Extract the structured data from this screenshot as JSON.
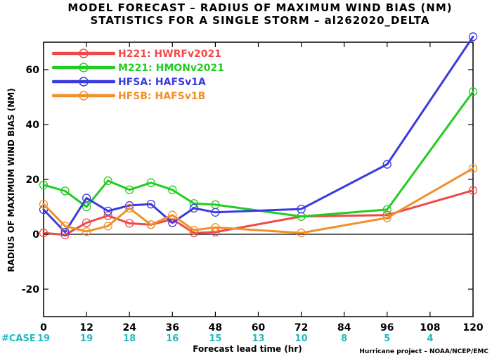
{
  "title_line1": "MODEL FORECAST – RADIUS OF MAXIMUM WIND BIAS (NM)",
  "title_line2": "STATISTICS FOR A SINGLE STORM – al262020_DELTA",
  "credit": "Hurricane project – NOAA/NCEP/EMC",
  "case_label": "#CASE",
  "case_color": "#1fb8c2",
  "cases": [
    {
      "hour": 0,
      "count": "19"
    },
    {
      "hour": 12,
      "count": "19"
    },
    {
      "hour": 24,
      "count": "18"
    },
    {
      "hour": 36,
      "count": "16"
    },
    {
      "hour": 48,
      "count": "15"
    },
    {
      "hour": 60,
      "count": "13"
    },
    {
      "hour": 72,
      "count": "10"
    },
    {
      "hour": 84,
      "count": "8"
    },
    {
      "hour": 96,
      "count": "5"
    },
    {
      "hour": 108,
      "count": "4"
    }
  ],
  "chart_data": {
    "type": "line",
    "title": "MODEL FORECAST – RADIUS OF MAXIMUM WIND BIAS (NM)",
    "subtitle": "STATISTICS FOR A SINGLE STORM – al262020_DELTA",
    "xlabel": "Forecast lead time (hr)",
    "ylabel": "RADIUS OF MAXIMUM WIND BIAS (NM)",
    "xlim": [
      0,
      120
    ],
    "ylim": [
      -30,
      70
    ],
    "xticks": [
      0,
      12,
      24,
      36,
      48,
      60,
      72,
      84,
      96,
      108,
      120
    ],
    "yticks": [
      -20,
      0,
      20,
      40,
      60
    ],
    "legend_position": "top-left",
    "zero_line": true,
    "series": [
      {
        "name": "H221: HWRFv2021",
        "color": "#f04848",
        "x": [
          0,
          6,
          12,
          18,
          24,
          30,
          36,
          42,
          48,
          72,
          96,
          120
        ],
        "y": [
          0.5,
          -0.2,
          4.2,
          6.8,
          4.0,
          3.5,
          5.5,
          0.5,
          0.8,
          6.5,
          7.0,
          16.0
        ]
      },
      {
        "name": "M221: HMONv2021",
        "color": "#22cc22",
        "x": [
          0,
          6,
          12,
          18,
          24,
          30,
          36,
          42,
          48,
          72,
          96,
          120
        ],
        "y": [
          18.0,
          15.8,
          10.0,
          19.5,
          16.2,
          18.8,
          16.2,
          11.2,
          10.8,
          6.5,
          9.0,
          52.0
        ]
      },
      {
        "name": "HFSA: HAFSv1A",
        "color": "#3a3ae0",
        "x": [
          0,
          6,
          12,
          18,
          24,
          30,
          36,
          42,
          48,
          72,
          96,
          120
        ],
        "y": [
          9.0,
          0.8,
          13.2,
          8.5,
          10.5,
          11.0,
          4.2,
          9.5,
          8.0,
          9.2,
          25.5,
          72.0
        ]
      },
      {
        "name": "HFSB: HAFSv1B",
        "color": "#f0902a",
        "x": [
          0,
          6,
          12,
          18,
          24,
          30,
          36,
          42,
          48,
          72,
          96,
          120
        ],
        "y": [
          11.0,
          3.0,
          1.0,
          3.0,
          9.5,
          3.5,
          7.0,
          1.5,
          2.5,
          0.5,
          6.0,
          24.0
        ]
      }
    ]
  }
}
